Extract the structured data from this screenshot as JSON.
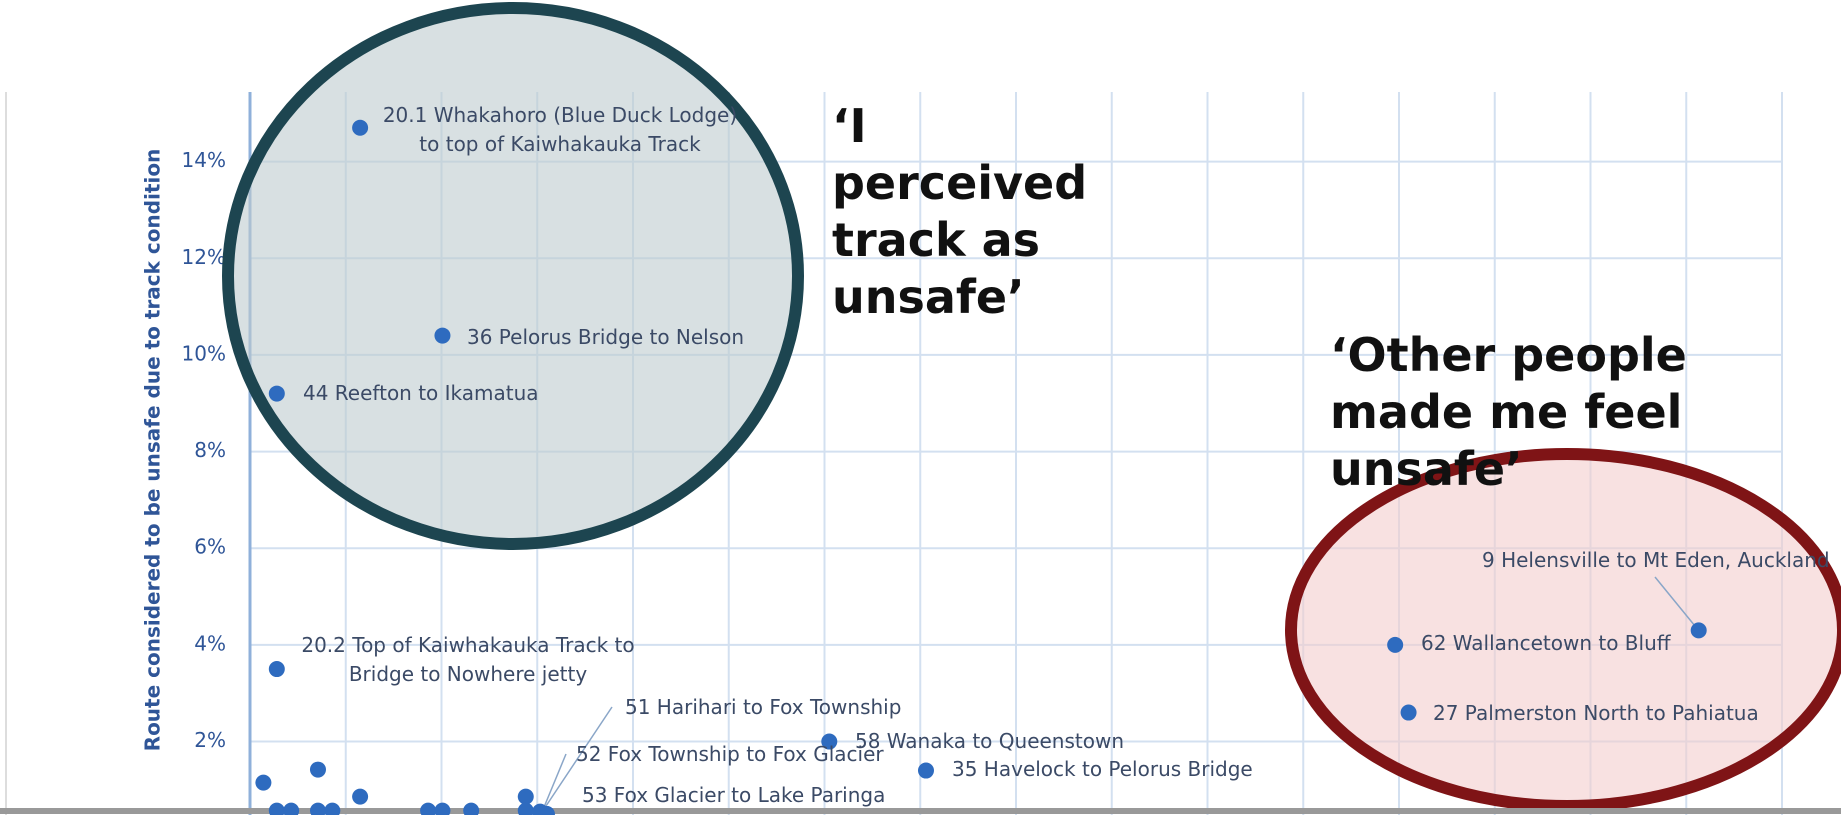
{
  "chart_data": {
    "type": "scatter",
    "y_label": "Route considered to be unsafe due to track condition",
    "ylim": [
      0.48,
      15.44
    ],
    "yticks": [
      {
        "value": 2,
        "label": "2%"
      },
      {
        "value": 4,
        "label": "4%"
      },
      {
        "value": 6,
        "label": "6%"
      },
      {
        "value": 8,
        "label": "8%"
      },
      {
        "value": 10,
        "label": "10%"
      },
      {
        "value": 12,
        "label": "12%"
      },
      {
        "value": 14,
        "label": "14%"
      }
    ],
    "xlim": [
      0,
      16
    ],
    "xticks": [
      0,
      1,
      2,
      3,
      4,
      5,
      6,
      7,
      8,
      9,
      10,
      11,
      12,
      13,
      14,
      15,
      16
    ],
    "grid": true,
    "color": "#2e6bbf",
    "x": [
      1.15,
      2.01,
      0.28,
      0.28,
      3.03,
      3.1,
      3.1,
      6.05,
      7.06,
      15.13,
      11.96,
      12.1,
      0.14,
      0.28,
      0.43,
      0.71,
      0.71,
      0.86,
      1.15,
      1.86,
      2.01,
      2.31,
      2.88,
      2.88
    ],
    "values": [
      14.7,
      10.4,
      9.2,
      3.5,
      0.55,
      0.5,
      0.5,
      2.0,
      1.4,
      4.3,
      4.0,
      2.6,
      1.15,
      0.57,
      0.57,
      1.42,
      0.57,
      0.57,
      0.86,
      0.57,
      0.57,
      0.57,
      0.86,
      0.57
    ],
    "labels": [
      "20.1 Whakahoro (Blue Duck Lodge) to top of Kaiwhakauka Track",
      "36 Pelorus Bridge to Nelson",
      "44 Reefton to Ikamatua",
      "20.2 Top of Kaiwhakauka Track to Bridge to Nowhere jetty",
      "51 Harihari to Fox Township",
      "52 Fox Township to Fox Glacier",
      "53 Fox Glacier to Lake Paringa",
      "58 Wanaka to Queenstown",
      "35 Havelock to Pelorus Bridge",
      "9 Helensville to Mt Eden, Auckland",
      "62 Wallancetown to Bluff",
      "27 Palmerston North to Pahiatua",
      null,
      null,
      null,
      null,
      null,
      null,
      null,
      null,
      null,
      null,
      null,
      null
    ],
    "annotations": [
      "‘I perceived track as unsafe’",
      "‘Other people made me feel unsafe’"
    ]
  }
}
